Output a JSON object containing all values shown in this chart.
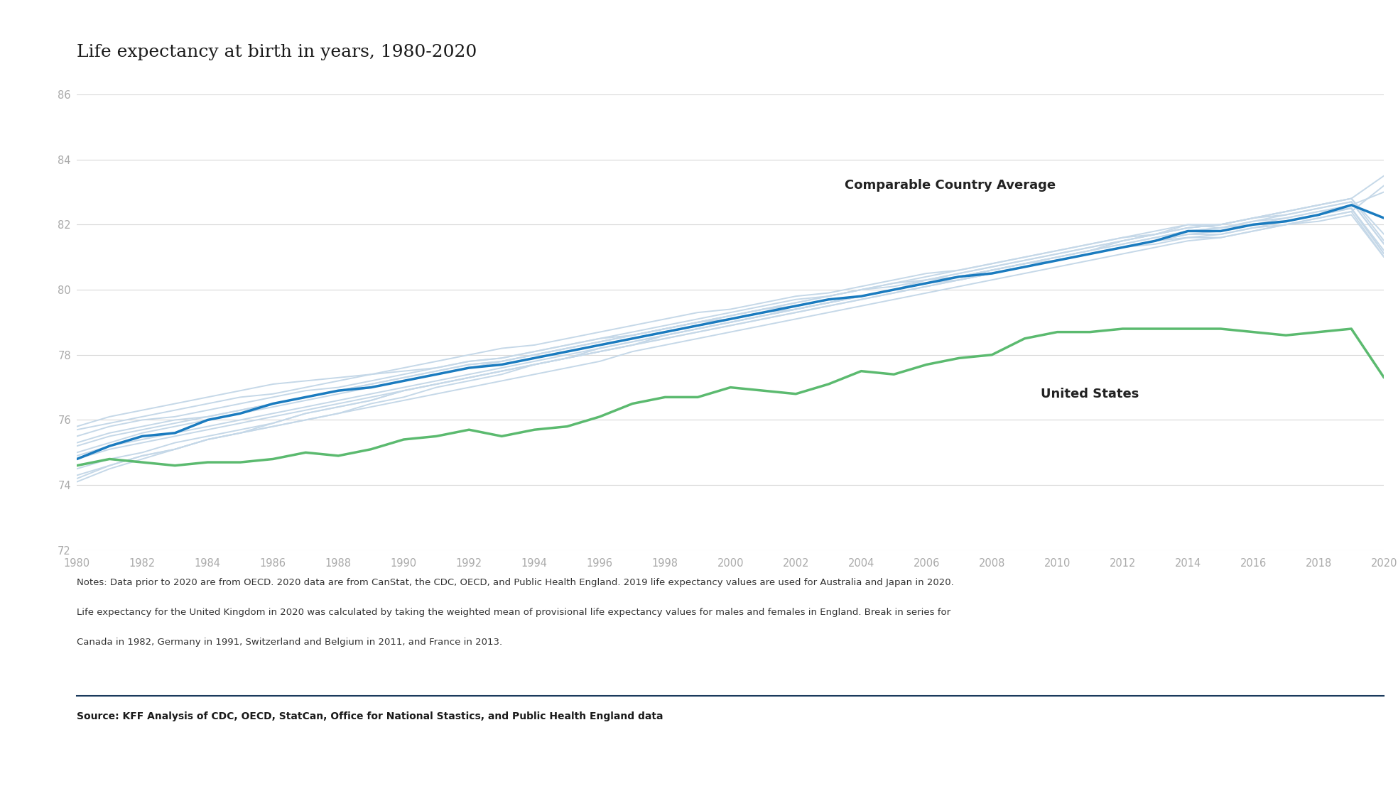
{
  "title": "Life expectancy at birth in years, 1980-2020",
  "years": [
    1980,
    1981,
    1982,
    1983,
    1984,
    1985,
    1986,
    1987,
    1988,
    1989,
    1990,
    1991,
    1992,
    1993,
    1994,
    1995,
    1996,
    1997,
    1998,
    1999,
    2000,
    2001,
    2002,
    2003,
    2004,
    2005,
    2006,
    2007,
    2008,
    2009,
    2010,
    2011,
    2012,
    2013,
    2014,
    2015,
    2016,
    2017,
    2018,
    2019,
    2020
  ],
  "usa": [
    74.6,
    74.8,
    74.7,
    74.6,
    74.7,
    74.7,
    74.8,
    75.0,
    74.9,
    75.1,
    75.4,
    75.5,
    75.7,
    75.5,
    75.7,
    75.8,
    76.1,
    76.5,
    76.7,
    76.7,
    77.0,
    76.9,
    76.8,
    77.1,
    77.5,
    77.4,
    77.7,
    77.9,
    78.0,
    78.5,
    78.7,
    78.7,
    78.8,
    78.8,
    78.8,
    78.8,
    78.7,
    78.6,
    78.7,
    78.8,
    77.3
  ],
  "comparable_avg": [
    74.8,
    75.2,
    75.5,
    75.6,
    76.0,
    76.2,
    76.5,
    76.7,
    76.9,
    77.0,
    77.2,
    77.4,
    77.6,
    77.7,
    77.9,
    78.1,
    78.3,
    78.5,
    78.7,
    78.9,
    79.1,
    79.3,
    79.5,
    79.7,
    79.8,
    80.0,
    80.2,
    80.4,
    80.5,
    80.7,
    80.9,
    81.1,
    81.3,
    81.5,
    81.8,
    81.8,
    82.0,
    82.1,
    82.3,
    82.6,
    82.2
  ],
  "background_countries": [
    [
      75.8,
      76.1,
      76.3,
      76.5,
      76.7,
      76.9,
      77.1,
      77.2,
      77.3,
      77.4,
      77.5,
      77.6,
      77.8,
      77.9,
      78.1,
      78.3,
      78.5,
      78.7,
      78.9,
      79.1,
      79.3,
      79.5,
      79.7,
      79.8,
      80.0,
      80.1,
      80.3,
      80.4,
      80.6,
      80.8,
      80.9,
      81.1,
      81.3,
      81.4,
      81.6,
      81.7,
      81.9,
      82.0,
      82.2,
      82.4,
      81.0
    ],
    [
      74.1,
      74.5,
      74.8,
      75.1,
      75.4,
      75.6,
      75.8,
      76.0,
      76.2,
      76.5,
      76.7,
      77.0,
      77.2,
      77.4,
      77.7,
      77.9,
      78.1,
      78.3,
      78.6,
      78.8,
      79.0,
      79.2,
      79.4,
      79.6,
      79.8,
      80.0,
      80.2,
      80.4,
      80.6,
      80.8,
      81.0,
      81.2,
      81.4,
      81.6,
      81.8,
      81.9,
      82.1,
      82.2,
      82.4,
      82.5,
      81.2
    ],
    [
      75.5,
      75.8,
      76.0,
      76.1,
      76.3,
      76.5,
      76.7,
      76.9,
      77.0,
      77.2,
      77.4,
      77.6,
      77.8,
      77.9,
      78.1,
      78.3,
      78.5,
      78.6,
      78.8,
      79.0,
      79.2,
      79.4,
      79.5,
      79.7,
      79.8,
      80.0,
      80.2,
      80.3,
      80.5,
      80.7,
      80.9,
      81.1,
      81.3,
      81.5,
      81.7,
      81.8,
      82.0,
      82.1,
      82.3,
      82.5,
      81.1
    ],
    [
      74.5,
      74.8,
      75.0,
      75.3,
      75.5,
      75.7,
      75.9,
      76.2,
      76.4,
      76.6,
      76.9,
      77.1,
      77.3,
      77.5,
      77.7,
      77.9,
      78.1,
      78.3,
      78.5,
      78.7,
      78.9,
      79.1,
      79.3,
      79.5,
      79.7,
      79.9,
      80.1,
      80.3,
      80.5,
      80.7,
      80.9,
      81.1,
      81.3,
      81.5,
      81.6,
      81.6,
      81.8,
      82.0,
      82.1,
      82.3,
      81.0
    ],
    [
      75.3,
      75.6,
      75.8,
      76.0,
      76.1,
      76.3,
      76.5,
      76.7,
      76.9,
      77.1,
      77.3,
      77.5,
      77.7,
      77.8,
      78.0,
      78.2,
      78.4,
      78.6,
      78.8,
      79.0,
      79.1,
      79.3,
      79.4,
      79.6,
      79.8,
      80.0,
      80.2,
      80.4,
      80.6,
      80.8,
      81.0,
      81.2,
      81.5,
      81.7,
      82.0,
      81.9,
      82.1,
      82.3,
      82.5,
      82.7,
      81.4
    ],
    [
      74.8,
      75.1,
      75.3,
      75.5,
      75.7,
      75.9,
      76.1,
      76.3,
      76.5,
      76.7,
      76.9,
      77.1,
      77.3,
      77.5,
      77.7,
      77.9,
      78.1,
      78.3,
      78.5,
      78.7,
      78.9,
      79.1,
      79.3,
      79.5,
      79.7,
      79.9,
      80.1,
      80.3,
      80.5,
      80.7,
      80.9,
      81.1,
      81.3,
      81.5,
      81.7,
      81.7,
      81.9,
      82.1,
      82.3,
      82.5,
      81.1
    ],
    [
      74.2,
      74.6,
      74.9,
      75.1,
      75.4,
      75.6,
      75.9,
      76.2,
      76.4,
      76.6,
      76.9,
      77.1,
      77.3,
      77.5,
      77.7,
      77.9,
      78.2,
      78.4,
      78.6,
      78.8,
      79.0,
      79.2,
      79.4,
      79.6,
      79.8,
      80.0,
      80.3,
      80.5,
      80.7,
      80.9,
      81.1,
      81.3,
      81.5,
      81.7,
      81.9,
      82.0,
      82.2,
      82.4,
      82.6,
      82.8,
      81.5
    ],
    [
      75.0,
      75.3,
      75.6,
      75.8,
      76.0,
      76.2,
      76.4,
      76.6,
      76.8,
      77.0,
      77.2,
      77.4,
      77.6,
      77.8,
      78.0,
      78.2,
      78.4,
      78.6,
      78.8,
      79.0,
      79.2,
      79.4,
      79.6,
      79.8,
      80.0,
      80.2,
      80.4,
      80.6,
      80.8,
      81.0,
      81.2,
      81.4,
      81.6,
      81.8,
      82.0,
      82.0,
      82.2,
      82.3,
      82.5,
      82.7,
      81.4
    ],
    [
      75.7,
      75.9,
      76.1,
      76.3,
      76.5,
      76.7,
      76.8,
      77.0,
      77.2,
      77.4,
      77.6,
      77.8,
      78.0,
      78.2,
      78.3,
      78.5,
      78.7,
      78.9,
      79.1,
      79.3,
      79.4,
      79.6,
      79.8,
      79.9,
      80.1,
      80.3,
      80.5,
      80.6,
      80.8,
      81.0,
      81.2,
      81.4,
      81.6,
      81.7,
      81.9,
      82.0,
      82.2,
      82.4,
      82.6,
      82.8,
      81.7
    ],
    [
      74.3,
      74.6,
      74.9,
      75.1,
      75.4,
      75.6,
      75.8,
      76.0,
      76.2,
      76.4,
      76.6,
      76.8,
      77.0,
      77.2,
      77.4,
      77.6,
      77.8,
      78.1,
      78.3,
      78.5,
      78.7,
      78.9,
      79.1,
      79.3,
      79.5,
      79.7,
      79.9,
      80.1,
      80.3,
      80.5,
      80.7,
      80.9,
      81.1,
      81.3,
      81.5,
      81.6,
      81.8,
      82.0,
      82.2,
      82.4,
      83.2
    ],
    [
      75.2,
      75.5,
      75.7,
      75.9,
      76.1,
      76.3,
      76.5,
      76.7,
      76.9,
      77.1,
      77.3,
      77.5,
      77.7,
      77.8,
      78.0,
      78.2,
      78.4,
      78.6,
      78.8,
      79.0,
      79.2,
      79.4,
      79.6,
      79.8,
      80.0,
      80.2,
      80.3,
      80.5,
      80.7,
      80.9,
      81.1,
      81.3,
      81.5,
      81.7,
      81.9,
      82.0,
      82.2,
      82.4,
      82.6,
      82.8,
      83.5
    ],
    [
      74.9,
      75.2,
      75.4,
      75.6,
      75.8,
      76.0,
      76.2,
      76.4,
      76.6,
      76.8,
      77.0,
      77.2,
      77.4,
      77.6,
      77.8,
      78.0,
      78.2,
      78.4,
      78.6,
      78.8,
      79.0,
      79.2,
      79.4,
      79.6,
      79.8,
      80.0,
      80.2,
      80.4,
      80.6,
      80.8,
      81.0,
      81.2,
      81.4,
      81.6,
      81.8,
      81.9,
      82.0,
      82.2,
      82.4,
      82.6,
      83.0
    ]
  ],
  "comparable_label": "Comparable Country Average",
  "usa_label": "United States",
  "comparable_color": "#1a7bbf",
  "usa_color": "#5bba6f",
  "bg_color": "#c5d8e8",
  "ylim": [
    72,
    86
  ],
  "yticks": [
    72,
    74,
    76,
    78,
    80,
    82,
    84,
    86
  ],
  "notes_line1": "Notes: Data prior to 2020 are from OECD. 2020 data are from CanStat, the CDC, OECD, and Public Health England. 2019 life expectancy values are used for Australia and Japan in 2020.",
  "notes_line2": "Life expectancy for the United Kingdom in 2020 was calculated by taking the weighted mean of provisional life expectancy values for males and females in England. Break in series for",
  "notes_line3": "Canada in 1982, Germany in 1991, Switzerland and Belgium in 2011, and France in 2013.",
  "source": "Source: KFF Analysis of CDC, OECD, StatCan, Office for National Stastics, and Public Health England data",
  "bg_chart": "#ffffff",
  "grid_color": "#d8d8d8",
  "tick_color": "#aaaaaa",
  "label_color": "#222222",
  "divider_color": "#1a3a5c"
}
